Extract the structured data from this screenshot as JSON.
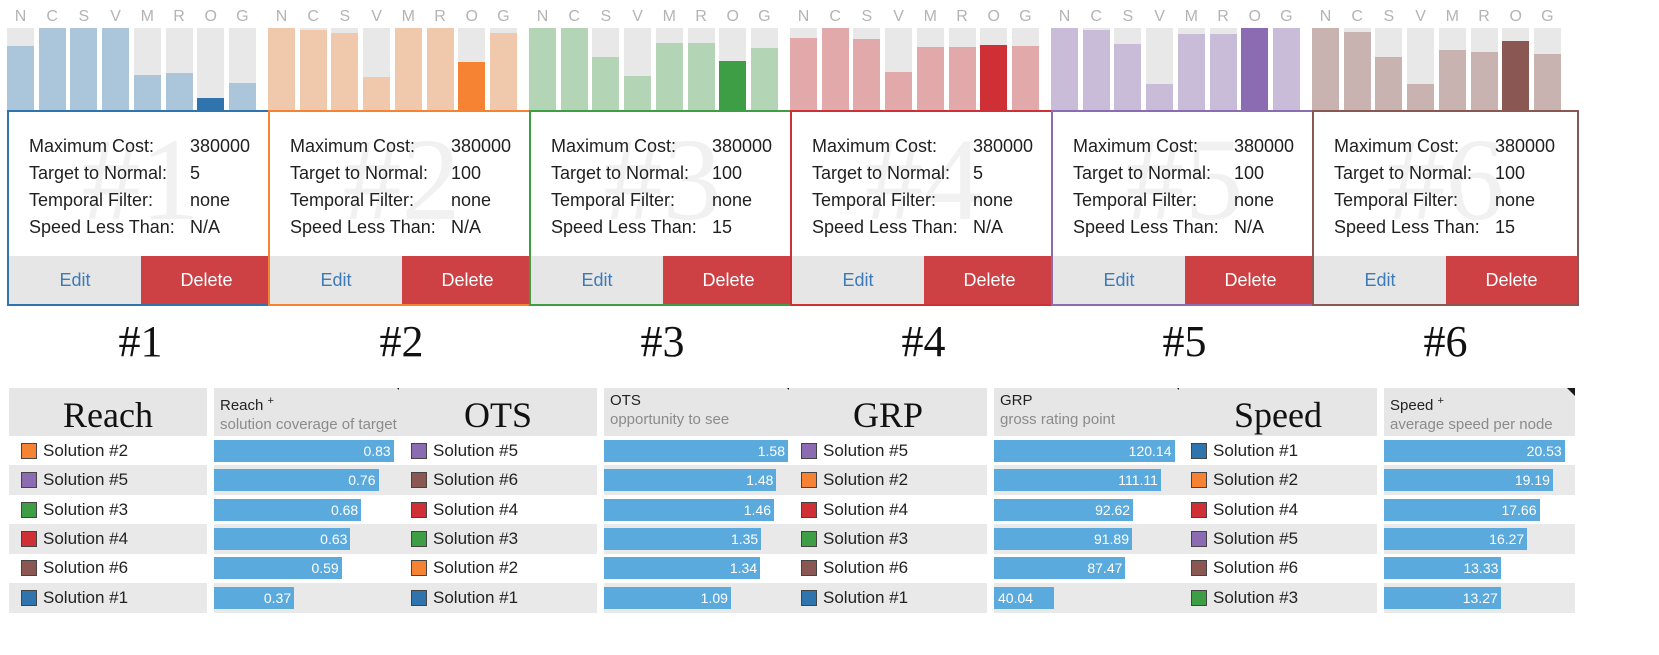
{
  "colors": {
    "solution_1": "#2f74ac",
    "solution_2": "#f58333",
    "solution_3": "#3e9e45",
    "solution_4": "#cf3036",
    "solution_5": "#8b6cb3",
    "solution_6": "#8b5752",
    "edit_text": "#3d7ab8",
    "delete_bg": "#cd4145",
    "ranking_bar": "#5aaade"
  },
  "cards": {
    "letters": [
      "N",
      "C",
      "S",
      "V",
      "M",
      "R",
      "O",
      "G"
    ],
    "labels": {
      "max_cost": "Maximum Cost:",
      "target": "Target to Normal:",
      "temporal": "Temporal Filter:",
      "speed": "Speed Less Than:"
    },
    "edit_label": "Edit",
    "delete_label": "Delete",
    "items": [
      {
        "number": "#1",
        "color": "#2f74ac",
        "light": "#abc6da",
        "highlight": 6,
        "levels": [
          0.78,
          1.0,
          1.0,
          1.0,
          0.43,
          0.45,
          0.15,
          0.33
        ],
        "max_cost": "380000",
        "target": "5",
        "temporal": "none",
        "speed": "N/A"
      },
      {
        "number": "#2",
        "color": "#f58333",
        "light": "#f0c8ab",
        "highlight": 6,
        "levels": [
          1.0,
          0.98,
          0.94,
          0.4,
          1.0,
          1.0,
          0.58,
          0.94
        ],
        "max_cost": "380000",
        "target": "100",
        "temporal": "none",
        "speed": "N/A"
      },
      {
        "number": "#3",
        "color": "#3e9e45",
        "light": "#b3d5b5",
        "highlight": 6,
        "levels": [
          1.0,
          1.0,
          0.65,
          0.41,
          0.82,
          0.82,
          0.6,
          0.75
        ],
        "max_cost": "380000",
        "target": "100",
        "temporal": "none",
        "speed": "15"
      },
      {
        "number": "#4",
        "color": "#cf3036",
        "light": "#e2a9ab",
        "highlight": 6,
        "levels": [
          0.88,
          1.0,
          0.86,
          0.46,
          0.77,
          0.77,
          0.79,
          0.78
        ],
        "max_cost": "380000",
        "target": "5",
        "temporal": "none",
        "speed": "N/A"
      },
      {
        "number": "#5",
        "color": "#8b6cb3",
        "light": "#c8bcd8",
        "highlight": 6,
        "levels": [
          1.0,
          0.98,
          0.8,
          0.32,
          0.93,
          0.93,
          1.0,
          1.0
        ],
        "max_cost": "380000",
        "target": "100",
        "temporal": "none",
        "speed": "N/A"
      },
      {
        "number": "#6",
        "color": "#8b5752",
        "light": "#c9b3b0",
        "highlight": 6,
        "levels": [
          1.0,
          0.95,
          0.65,
          0.32,
          0.73,
          0.71,
          0.84,
          0.68
        ],
        "max_cost": "380000",
        "target": "100",
        "temporal": "none",
        "speed": "15"
      }
    ]
  },
  "rankings": [
    {
      "title": "Reach",
      "metric": "Reach",
      "sup": "+",
      "subtitle": "solution coverage of target",
      "max": 0.85,
      "rows": [
        {
          "solution": "Solution #2",
          "color": "#f58333",
          "value": 0.83,
          "label": "0.83"
        },
        {
          "solution": "Solution #5",
          "color": "#8b6cb3",
          "value": 0.76,
          "label": "0.76"
        },
        {
          "solution": "Solution #3",
          "color": "#3e9e45",
          "value": 0.68,
          "label": "0.68"
        },
        {
          "solution": "Solution #4",
          "color": "#cf3036",
          "value": 0.63,
          "label": "0.63"
        },
        {
          "solution": "Solution #6",
          "color": "#8b5752",
          "value": 0.59,
          "label": "0.59"
        },
        {
          "solution": "Solution #1",
          "color": "#2f74ac",
          "value": 0.37,
          "label": "0.37"
        }
      ]
    },
    {
      "title": "OTS",
      "metric": "OTS",
      "sup": "",
      "subtitle": "opportunity to see",
      "max": 1.58,
      "rows": [
        {
          "solution": "Solution #5",
          "color": "#8b6cb3",
          "value": 1.58,
          "label": "1.58"
        },
        {
          "solution": "Solution #6",
          "color": "#8b5752",
          "value": 1.48,
          "label": "1.48"
        },
        {
          "solution": "Solution #4",
          "color": "#cf3036",
          "value": 1.46,
          "label": "1.46"
        },
        {
          "solution": "Solution #3",
          "color": "#3e9e45",
          "value": 1.35,
          "label": "1.35"
        },
        {
          "solution": "Solution #2",
          "color": "#f58333",
          "value": 1.34,
          "label": "1.34"
        },
        {
          "solution": "Solution #1",
          "color": "#2f74ac",
          "value": 1.09,
          "label": "1.09"
        }
      ]
    },
    {
      "title": "GRP",
      "metric": "GRP",
      "sup": "",
      "subtitle": "gross rating point",
      "max": 122.5,
      "rows": [
        {
          "solution": "Solution #5",
          "color": "#8b6cb3",
          "value": 120.14,
          "label": "120.14"
        },
        {
          "solution": "Solution #2",
          "color": "#f58333",
          "value": 111.11,
          "label": "111.11"
        },
        {
          "solution": "Solution #4",
          "color": "#cf3036",
          "value": 92.62,
          "label": "92.62"
        },
        {
          "solution": "Solution #3",
          "color": "#3e9e45",
          "value": 91.89,
          "label": "91.89"
        },
        {
          "solution": "Solution #6",
          "color": "#8b5752",
          "value": 87.47,
          "label": "87.47"
        },
        {
          "solution": "Solution #1",
          "color": "#2f74ac",
          "value": 40.04,
          "label": "40.04"
        }
      ]
    },
    {
      "title": "Speed",
      "metric": "Speed",
      "sup": "+",
      "subtitle": "average speed per node",
      "max": 20.9,
      "rows": [
        {
          "solution": "Solution #1",
          "color": "#2f74ac",
          "value": 20.53,
          "label": "20.53"
        },
        {
          "solution": "Solution #2",
          "color": "#f58333",
          "value": 19.19,
          "label": "19.19"
        },
        {
          "solution": "Solution #4",
          "color": "#cf3036",
          "value": 17.66,
          "label": "17.66"
        },
        {
          "solution": "Solution #5",
          "color": "#8b6cb3",
          "value": 16.27,
          "label": "16.27"
        },
        {
          "solution": "Solution #6",
          "color": "#8b5752",
          "value": 13.33,
          "label": "13.33"
        },
        {
          "solution": "Solution #3",
          "color": "#3e9e45",
          "value": 13.27,
          "label": "13.27"
        }
      ]
    }
  ]
}
